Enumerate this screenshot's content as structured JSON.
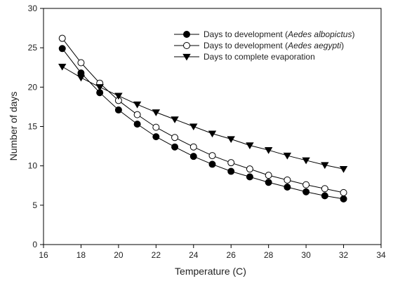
{
  "chart_data": {
    "type": "line",
    "xlabel": "Temperature (C)",
    "ylabel": "Number of days",
    "xlim": [
      16,
      34
    ],
    "ylim": [
      0,
      30
    ],
    "xticks": [
      16,
      18,
      20,
      22,
      24,
      26,
      28,
      30,
      32,
      34
    ],
    "yticks": [
      0,
      5,
      10,
      15,
      20,
      25,
      30
    ],
    "grid": false,
    "legend_position": "top-right",
    "x": [
      17,
      18,
      19,
      20,
      21,
      22,
      23,
      24,
      25,
      26,
      27,
      28,
      29,
      30,
      31,
      32
    ],
    "series": [
      {
        "name": "Days to development (Aedes albopictus)",
        "name_prefix": "Days to development (",
        "name_italic": "Aedes albopictus",
        "name_suffix": ")",
        "marker": "circle-filled",
        "color": "#000000",
        "values": [
          24.9,
          21.8,
          19.3,
          17.1,
          15.3,
          13.7,
          12.4,
          11.2,
          10.2,
          9.3,
          8.6,
          7.9,
          7.3,
          6.7,
          6.2,
          5.8
        ]
      },
      {
        "name": "Days to development (Aedes aegypti)",
        "name_prefix": "Days to development (",
        "name_italic": "Aedes aegypti",
        "name_suffix": ")",
        "marker": "circle-open",
        "color": "#000000",
        "values": [
          26.2,
          23.1,
          20.5,
          18.3,
          16.5,
          14.9,
          13.6,
          12.4,
          11.3,
          10.4,
          9.6,
          8.8,
          8.2,
          7.6,
          7.1,
          6.6
        ]
      },
      {
        "name": "Days to complete evaporation",
        "name_prefix": "Days to complete evaporation",
        "name_italic": "",
        "name_suffix": "",
        "marker": "triangle-down-filled",
        "color": "#000000",
        "values": [
          22.6,
          21.2,
          20.0,
          18.9,
          17.8,
          16.8,
          15.9,
          15.0,
          14.1,
          13.4,
          12.6,
          12.0,
          11.3,
          10.7,
          10.1,
          9.6
        ]
      }
    ]
  }
}
